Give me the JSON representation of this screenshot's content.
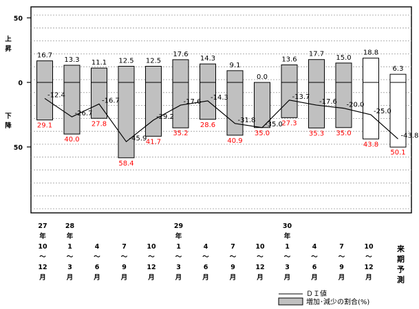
{
  "chart_data": {
    "type": "bar",
    "title": "",
    "y_axis": {
      "range": [
        -50,
        50
      ],
      "ticks": [
        "50",
        "0",
        "50"
      ],
      "upper_label": [
        "上",
        "昇"
      ],
      "lower_label": [
        "下",
        "降"
      ],
      "grid": true
    },
    "categories": [
      [
        "27",
        "年",
        "10",
        "〜",
        "12",
        "月"
      ],
      [
        "28",
        "年",
        "1",
        "〜",
        "3",
        "月"
      ],
      [
        "",
        "",
        "4",
        "〜",
        "6",
        "月"
      ],
      [
        "",
        "",
        "7",
        "〜",
        "9",
        "月"
      ],
      [
        "",
        "",
        "10",
        "〜",
        "12",
        "月"
      ],
      [
        "29",
        "年",
        "1",
        "〜",
        "3",
        "月"
      ],
      [
        "",
        "",
        "4",
        "〜",
        "6",
        "月"
      ],
      [
        "",
        "",
        "7",
        "〜",
        "9",
        "月"
      ],
      [
        "",
        "",
        "10",
        "〜",
        "12",
        "月"
      ],
      [
        "30",
        "年",
        "1",
        "〜",
        "3",
        "月"
      ],
      [
        "",
        "",
        "4",
        "〜",
        "6",
        "月"
      ],
      [
        "",
        "",
        "7",
        "〜",
        "9",
        "月"
      ],
      [
        "",
        "",
        "10",
        "〜",
        "12",
        "月"
      ],
      [
        "",
        "",
        "来",
        "期",
        "予",
        "測"
      ]
    ],
    "increase_labels": [
      "16.7",
      "13.3",
      "11.1",
      "12.5",
      "12.5",
      "17.6",
      "14.3",
      "9.1",
      "0.0",
      "13.6",
      "17.7",
      "15.0",
      "18.8",
      "6.3"
    ],
    "decrease_labels": [
      "29.1",
      "40.0",
      "27.8",
      "58.4",
      "41.7",
      "35.2",
      "28.6",
      "40.9",
      "35.0",
      "27.3",
      "35.3",
      "35.0",
      "43.8",
      "50.1"
    ],
    "di_labels": [
      "-12.4",
      "-26.7",
      "-16.7",
      "-45.9",
      "-29.2",
      "-17.6",
      "-14.3",
      "-31.8",
      "-35.0",
      "-13.7",
      "-17.6",
      "-20.0",
      "-25.0",
      "-43.8"
    ],
    "increase_values": [
      16.7,
      13.3,
      11.1,
      12.5,
      12.5,
      17.6,
      14.3,
      9.1,
      0.0,
      13.6,
      17.7,
      15.0,
      18.8,
      6.3
    ],
    "decrease_values": [
      29.1,
      40.0,
      27.8,
      58.4,
      41.7,
      35.2,
      28.6,
      40.9,
      35.0,
      27.3,
      35.3,
      35.0,
      43.8,
      50.1
    ],
    "di_values": [
      -12.4,
      -26.7,
      -16.7,
      -45.9,
      -29.2,
      -17.6,
      -14.3,
      -31.8,
      -35.0,
      -13.7,
      -17.6,
      -20.0,
      -25.0,
      -43.8
    ],
    "forecast_from_index": 12,
    "legend": {
      "position": "bottom-right",
      "line_label": "ＤＩ値",
      "bar_label": "増加･減少の割合(%)"
    },
    "colors": {
      "bar_fill": "#c0c0c0",
      "forecast_fill": "#ffffff",
      "bar_stroke": "#000000",
      "decrease_text": "#ff0000",
      "line": "#000000",
      "grid": "#999999"
    }
  }
}
